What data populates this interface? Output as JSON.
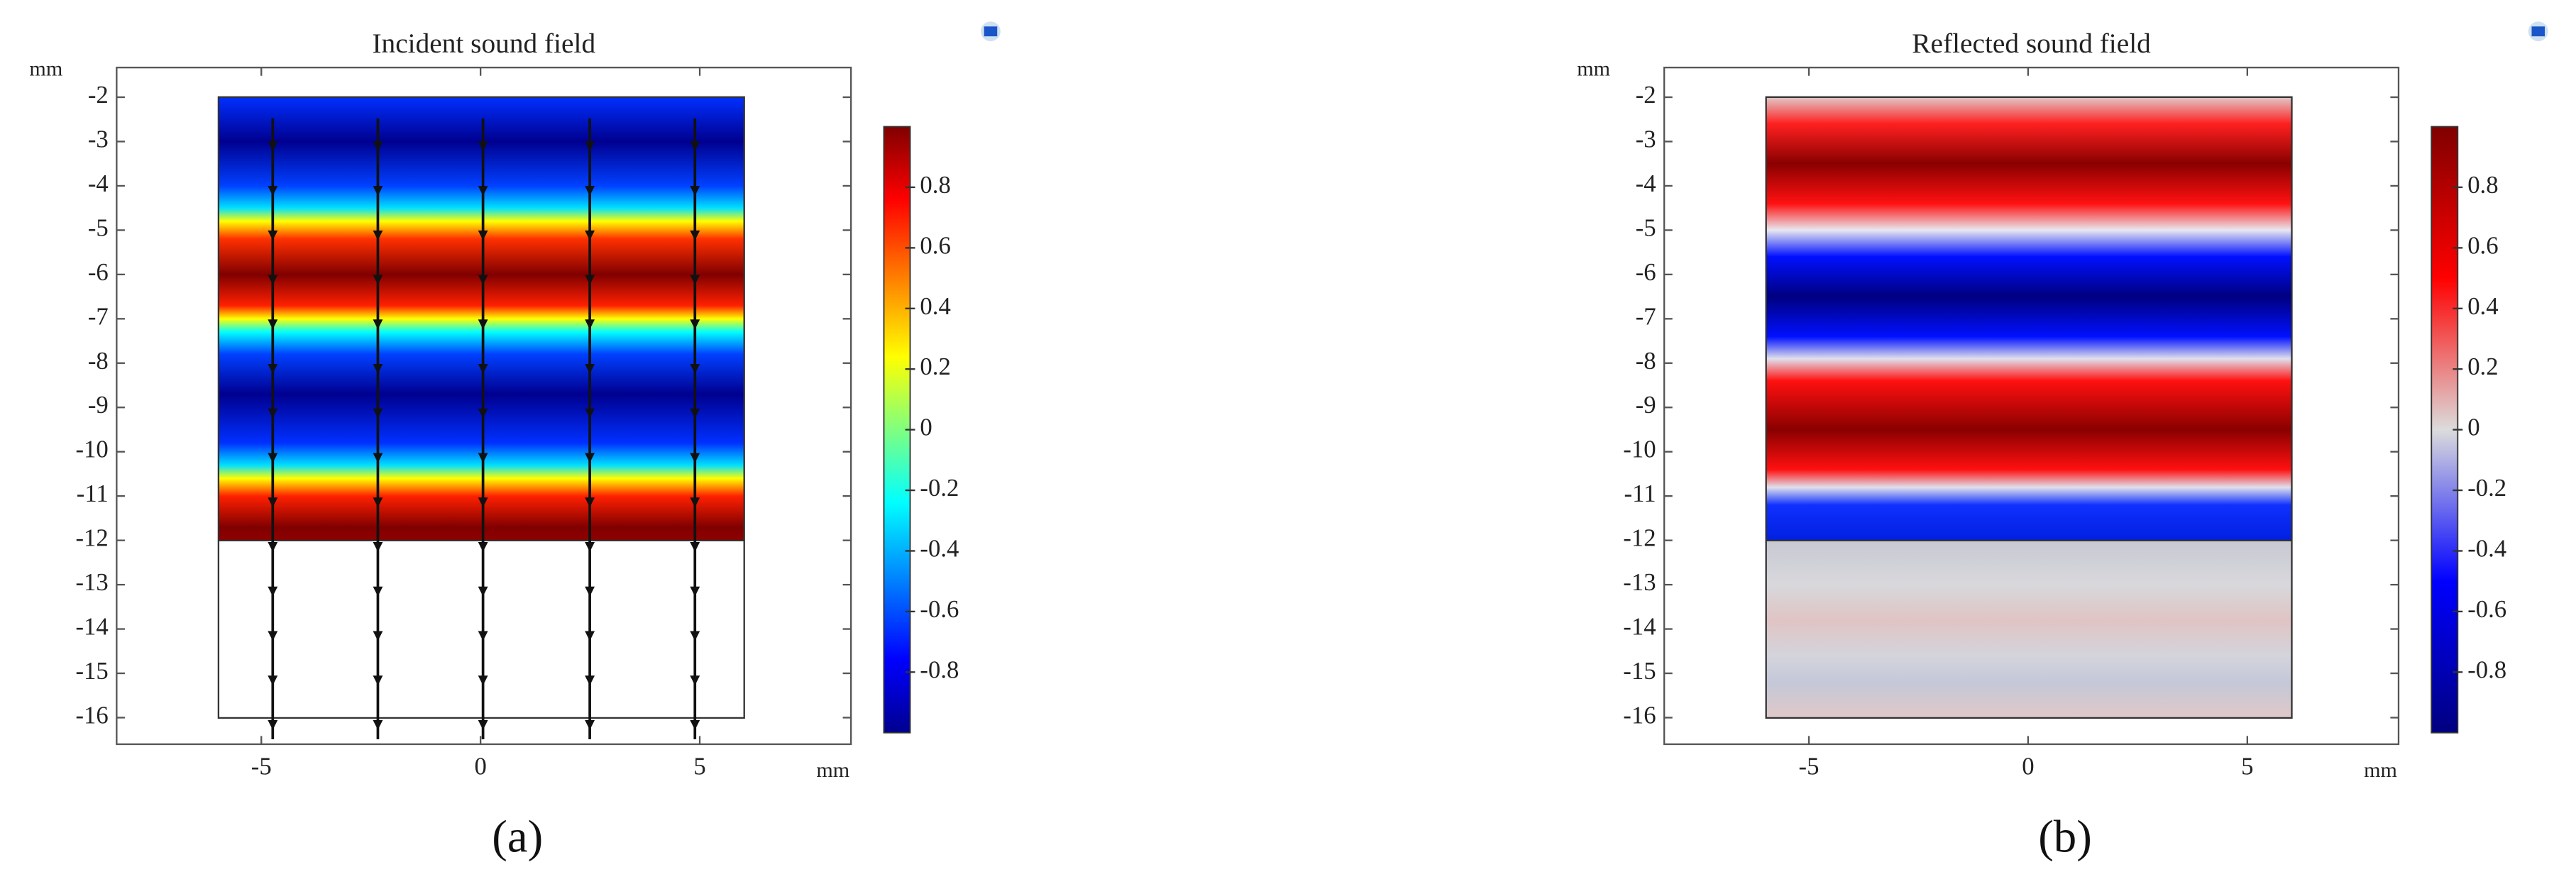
{
  "chart_data": [
    {
      "type": "heatmap",
      "title": "Incident sound field",
      "xlabel": "mm",
      "ylabel": "mm",
      "xlim": [
        -8.3,
        8.45
      ],
      "xticks": [
        -5,
        0,
        5
      ],
      "ylim": [
        -16.6,
        -1.33
      ],
      "yticks": [
        -2,
        -3,
        -4,
        -5,
        -6,
        -7,
        -8,
        -9,
        -10,
        -11,
        -12,
        -13,
        -14,
        -15,
        -16
      ],
      "colorbar": {
        "lim": [
          -1,
          1
        ],
        "ticks": [
          0.8,
          0.6,
          0.4,
          0.2,
          0,
          -0.2,
          -0.4,
          -0.6,
          -0.8
        ]
      },
      "panel_label": "(a)"
    },
    {
      "type": "heatmap",
      "title": "Reflected sound field",
      "xlabel": "mm",
      "ylabel": "mm",
      "xlim": [
        -8.3,
        8.45
      ],
      "xticks": [
        -5,
        0,
        5
      ],
      "ylim": [
        -16.6,
        -1.33
      ],
      "yticks": [
        -2,
        -3,
        -4,
        -5,
        -6,
        -7,
        -8,
        -9,
        -10,
        -11,
        -12,
        -13,
        -14,
        -15,
        -16
      ],
      "colorbar": {
        "lim": [
          -1,
          1
        ],
        "ticks": [
          0.8,
          0.6,
          0.4,
          0.2,
          0,
          -0.2,
          -0.4,
          -0.6,
          -0.8
        ]
      },
      "panel_label": "(b)"
    }
  ]
}
